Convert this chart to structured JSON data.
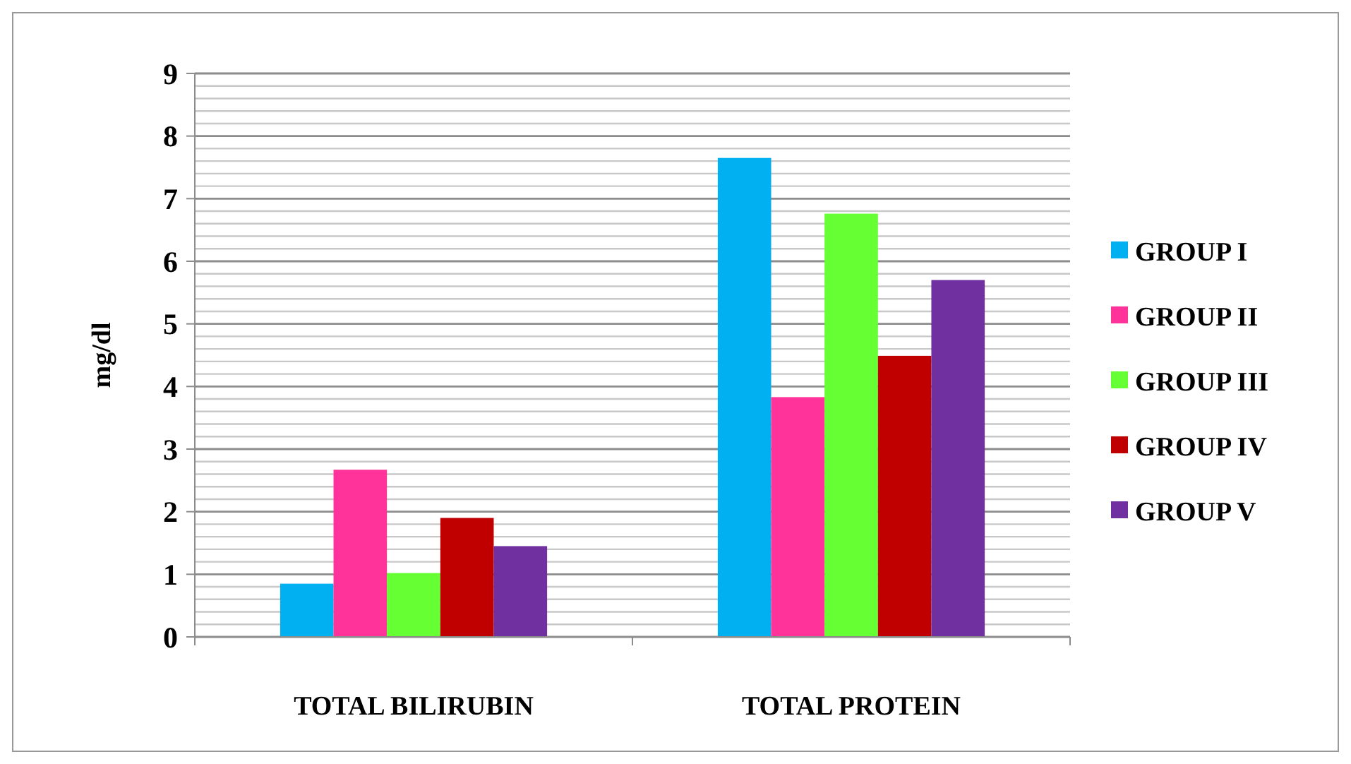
{
  "chart_data": {
    "type": "bar",
    "ylabel": "mg/dl",
    "categories": [
      "TOTAL BILIRUBIN",
      "TOTAL PROTEIN"
    ],
    "series": [
      {
        "name": "GROUP I",
        "color": "#00b0f0",
        "values": [
          0.85,
          7.65
        ]
      },
      {
        "name": "GROUP II",
        "color": "#ff3399",
        "values": [
          2.67,
          3.83
        ]
      },
      {
        "name": "GROUP III",
        "color": "#66ff33",
        "values": [
          1.02,
          6.76
        ]
      },
      {
        "name": "GROUP IV",
        "color": "#c00000",
        "values": [
          1.9,
          4.49
        ]
      },
      {
        "name": "GROUP V",
        "color": "#7030a0",
        "values": [
          1.45,
          5.7
        ]
      }
    ],
    "ylim": [
      0,
      9
    ],
    "yticks": [
      0,
      1,
      2,
      3,
      4,
      5,
      6,
      7,
      8,
      9
    ],
    "grid": true,
    "legend": "right"
  }
}
